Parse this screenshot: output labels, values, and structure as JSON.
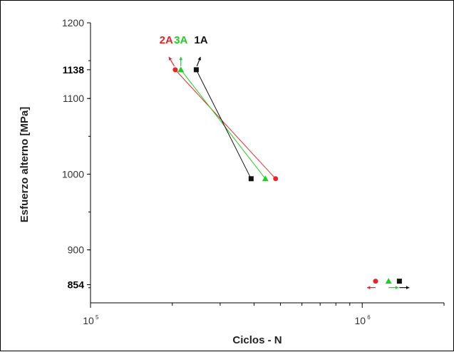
{
  "chart_data": {
    "type": "scatter",
    "title": "",
    "xlabel": "Ciclos - N",
    "ylabel": "Esfuerzo alterno [MPa]",
    "x_scale": "log",
    "xlim": [
      100000,
      2000000
    ],
    "ylim": [
      830,
      1200
    ],
    "x_ticks": [
      {
        "base": "10",
        "exp": "5",
        "value": 100000
      },
      {
        "base": "10",
        "exp": "6",
        "value": 1000000
      }
    ],
    "y_ticks": [
      {
        "label": "1200",
        "value": 1200,
        "bold": false
      },
      {
        "label": "1138",
        "value": 1138,
        "bold": true
      },
      {
        "label": "1100",
        "value": 1100,
        "bold": false
      },
      {
        "label": "1000",
        "value": 1000,
        "bold": false
      },
      {
        "label": "900",
        "value": 900,
        "bold": false
      },
      {
        "label": "854",
        "value": 854,
        "bold": true
      }
    ],
    "grid": false,
    "series": [
      {
        "name": "2A",
        "color": "#e8242b",
        "marker": "circle",
        "points": [
          [
            205000,
            1138
          ],
          [
            480000,
            994
          ]
        ],
        "runouts": [
          [
            1120000,
            852
          ]
        ],
        "label_pos": [
          190000,
          1180
        ],
        "arrow_dir": "up-left",
        "runout_dir": "left"
      },
      {
        "name": "3A",
        "color": "#22cc22",
        "marker": "triangle",
        "points": [
          [
            215000,
            1138
          ],
          [
            440000,
            994
          ]
        ],
        "runouts": [
          [
            1250000,
            852
          ]
        ],
        "label_pos": [
          215000,
          1180
        ],
        "arrow_dir": "up",
        "runout_dir": "right"
      },
      {
        "name": "1A",
        "color": "#111111",
        "marker": "square",
        "points": [
          [
            245000,
            1138
          ],
          [
            390000,
            994
          ]
        ],
        "runouts": [
          [
            1370000,
            852
          ]
        ],
        "label_pos": [
          255000,
          1180
        ],
        "arrow_dir": "up-right",
        "runout_dir": "right"
      }
    ]
  }
}
